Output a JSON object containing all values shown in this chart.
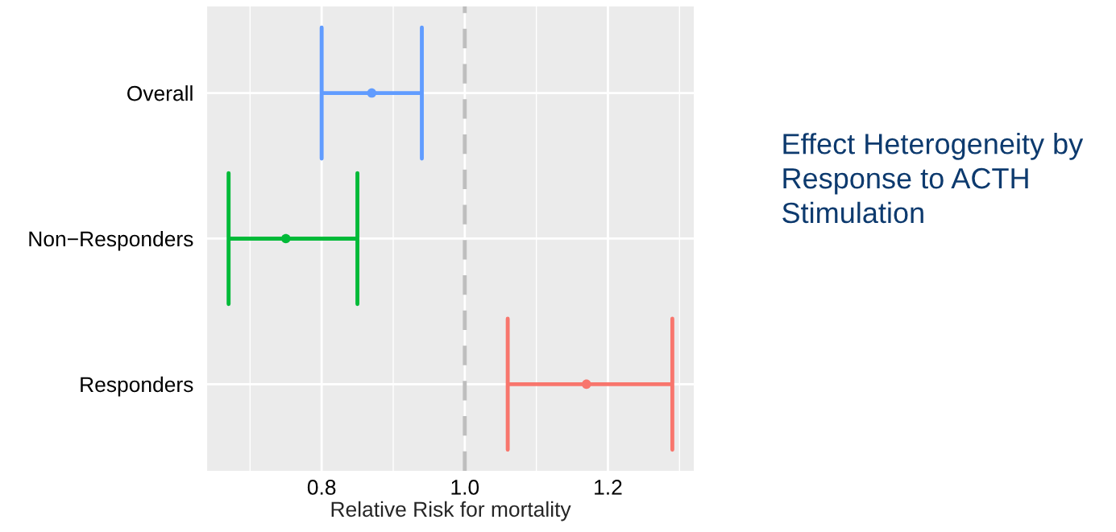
{
  "chart_data": {
    "type": "scatter",
    "orientation": "horizontal",
    "title": "Effect Heterogeneity by Response to ACTH Stimulation",
    "xlabel": "Relative Risk for mortality",
    "categories": [
      "Overall",
      "Non−Responders",
      "Responders"
    ],
    "series": [
      {
        "values": [
          0.87,
          0.75,
          1.17
        ],
        "colors": [
          "#619cff",
          "#00ba38",
          "#f8766d"
        ],
        "errors": [
          [
            0.8,
            0.94
          ],
          [
            0.67,
            0.85
          ],
          [
            1.06,
            1.29
          ]
        ]
      }
    ],
    "xlim": [
      0.64,
      1.32
    ],
    "xticks": [
      {
        "value": 0.8,
        "label": "0.8"
      },
      {
        "value": 1.0,
        "label": "1.0"
      },
      {
        "value": 1.2,
        "label": "1.2"
      }
    ],
    "ref_lines": [
      {
        "axis": "x",
        "value": 1.0,
        "color": "#bebebe",
        "line_style": "dashed"
      }
    ],
    "grid": true,
    "marker": "circle"
  }
}
